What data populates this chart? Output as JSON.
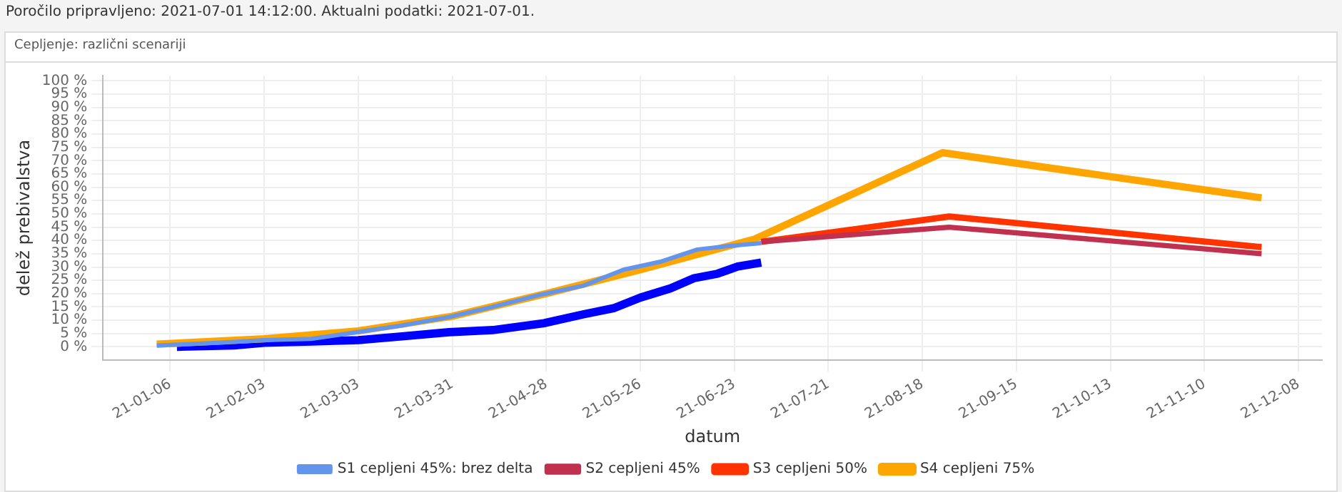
{
  "chart_data": {
    "type": "line",
    "title": "Cepljenje: različni scenariji",
    "xlabel": "datum",
    "ylabel": "delež prebivalstva",
    "annotations": [
      "Poročilo pripravljeno: 2021-07-01 14:12:00. Aktualni podatki: 2021-07-01."
    ],
    "xlim": [
      "2020-12-17",
      "2021-12-15"
    ],
    "xticks": [
      {
        "value": "2021-01-06",
        "label": "21-01-06"
      },
      {
        "value": "2021-02-03",
        "label": "21-02-03"
      },
      {
        "value": "2021-03-03",
        "label": "21-03-03"
      },
      {
        "value": "2021-03-31",
        "label": "21-03-31"
      },
      {
        "value": "2021-04-28",
        "label": "21-04-28"
      },
      {
        "value": "2021-05-26",
        "label": "21-05-26"
      },
      {
        "value": "2021-06-23",
        "label": "21-06-23"
      },
      {
        "value": "2021-07-21",
        "label": "21-07-21"
      },
      {
        "value": "2021-08-18",
        "label": "21-08-18"
      },
      {
        "value": "2021-09-15",
        "label": "21-09-15"
      },
      {
        "value": "2021-10-13",
        "label": "21-10-13"
      },
      {
        "value": "2021-11-10",
        "label": "21-11-10"
      },
      {
        "value": "2021-12-08",
        "label": "21-12-08"
      }
    ],
    "ylim": [
      -5,
      102
    ],
    "yticks": [
      {
        "value": 0,
        "label": "0 %"
      },
      {
        "value": 5,
        "label": "5 %"
      },
      {
        "value": 10,
        "label": "10 %"
      },
      {
        "value": 15,
        "label": "15 %"
      },
      {
        "value": 20,
        "label": "20 %"
      },
      {
        "value": 25,
        "label": "25 %"
      },
      {
        "value": 30,
        "label": "30 %"
      },
      {
        "value": 35,
        "label": "35 %"
      },
      {
        "value": 40,
        "label": "40 %"
      },
      {
        "value": 45,
        "label": "45 %"
      },
      {
        "value": 50,
        "label": "50 %"
      },
      {
        "value": 55,
        "label": "55 %"
      },
      {
        "value": 60,
        "label": "60 %"
      },
      {
        "value": 65,
        "label": "65 %"
      },
      {
        "value": 70,
        "label": "70 %"
      },
      {
        "value": 75,
        "label": "75 %"
      },
      {
        "value": 80,
        "label": "80 %"
      },
      {
        "value": 85,
        "label": "85 %"
      },
      {
        "value": 90,
        "label": "90 %"
      },
      {
        "value": 95,
        "label": "95 %"
      },
      {
        "value": 100,
        "label": "100 %"
      }
    ],
    "grid": true,
    "legend": "bottom",
    "marker": "none",
    "line_style": "solid",
    "series": [
      {
        "name": "S1 cepljeni 45%: brez delta",
        "color": "#6495ed",
        "x": [
          "2021-01-02",
          "2021-01-20",
          "2021-02-03",
          "2021-02-17",
          "2021-03-02",
          "2021-03-16",
          "2021-03-30",
          "2021-04-12",
          "2021-04-26",
          "2021-05-09",
          "2021-05-21",
          "2021-06-01",
          "2021-06-12",
          "2021-06-22",
          "2021-07-01"
        ],
        "values": [
          0.5,
          1.5,
          2.5,
          3,
          5.4,
          8,
          11.2,
          15,
          19.5,
          23,
          29,
          32,
          36.6,
          38,
          39
        ]
      },
      {
        "name": "S2 cepljeni 45%",
        "color": "#c0304f",
        "x": [
          "2021-07-01",
          "2021-08-26",
          "2021-11-27"
        ],
        "values": [
          39.5,
          45,
          35
        ]
      },
      {
        "name": "S3 cepljeni 50%",
        "color": "#ff3300",
        "x": [
          "2021-07-01",
          "2021-08-26",
          "2021-11-27"
        ],
        "values": [
          39.5,
          49,
          37.5
        ]
      },
      {
        "name": "S4 cepljeni 75%",
        "color": "#ffa500",
        "x": [
          "2021-01-02",
          "2021-02-03",
          "2021-03-03",
          "2021-03-31",
          "2021-04-28",
          "2021-05-26",
          "2021-06-29",
          "2021-08-24",
          "2021-10-13",
          "2021-11-27"
        ],
        "values": [
          1,
          3,
          6,
          11.5,
          20,
          29,
          40.5,
          73,
          64,
          56
        ]
      },
      {
        "color": "#0000ff",
        "x": [
          "2021-01-08",
          "2021-01-25",
          "2021-02-03",
          "2021-02-17",
          "2021-03-03",
          "2021-03-16",
          "2021-03-30",
          "2021-04-12",
          "2021-04-27",
          "2021-05-09",
          "2021-05-18",
          "2021-05-26",
          "2021-06-04",
          "2021-06-11",
          "2021-06-18",
          "2021-06-24",
          "2021-07-01"
        ],
        "values": [
          0,
          0.5,
          1.5,
          2,
          2.5,
          3.9,
          5.5,
          6.3,
          8.8,
          12.2,
          14.5,
          18.5,
          22,
          25.8,
          27.5,
          30.2,
          31.7
        ]
      }
    ]
  }
}
